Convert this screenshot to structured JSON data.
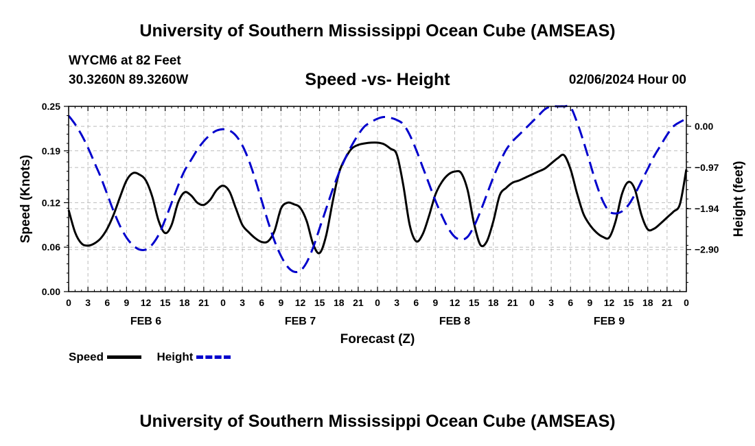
{
  "header": {
    "title": "University of Southern Mississippi Ocean Cube (AMSEAS)",
    "station": "WYCM6 at 82 Feet",
    "coordinates": "30.3260N  89.3260W",
    "subtitle": "Speed -vs- Height",
    "datetime": "02/06/2024 Hour 00"
  },
  "footer": {
    "title": "University of Southern Mississippi Ocean Cube (AMSEAS)"
  },
  "legend": {
    "speed_label": "Speed",
    "height_label": "Height"
  },
  "colors": {
    "speed": "#000000",
    "height": "#0000cc",
    "grid": "#bbbbbb"
  },
  "chart_data": {
    "type": "line",
    "title": "Speed -vs- Height",
    "xlabel": "Forecast (Z)",
    "ylabel": "Speed (Knots)",
    "ylabel_right": "Height (feet)",
    "x_range_hours": [
      0,
      96
    ],
    "xticks_hours": [
      0,
      3,
      6,
      9,
      12,
      15,
      18,
      21,
      24,
      27,
      30,
      33,
      36,
      39,
      42,
      45,
      48,
      51,
      54,
      57,
      60,
      63,
      66,
      69,
      72,
      75,
      78,
      81,
      84,
      87,
      90,
      93,
      96
    ],
    "xtick_labels": [
      "0",
      "3",
      "6",
      "9",
      "12",
      "15",
      "18",
      "21",
      "0",
      "3",
      "6",
      "9",
      "12",
      "15",
      "18",
      "21",
      "0",
      "3",
      "6",
      "9",
      "12",
      "15",
      "18",
      "21",
      "0",
      "3",
      "6",
      "9",
      "12",
      "15",
      "18",
      "21",
      "0"
    ],
    "day_labels": [
      {
        "hour": 12,
        "label": "FEB 6"
      },
      {
        "hour": 36,
        "label": "FEB 7"
      },
      {
        "hour": 60,
        "label": "FEB 8"
      },
      {
        "hour": 84,
        "label": "FEB 9"
      }
    ],
    "ylim_left": [
      0,
      0.25
    ],
    "yticks_left": [
      0.0,
      0.06,
      0.12,
      0.19,
      0.25
    ],
    "ytick_labels_left": [
      "0.00",
      "0.06",
      "0.12",
      "0.19",
      "0.25"
    ],
    "ylim_right": [
      -3.89,
      0.47
    ],
    "yticks_right": [
      0.0,
      -0.97,
      -1.94,
      -2.9
    ],
    "ytick_labels_right": [
      "0.00",
      "−0.97",
      "−1.94",
      "−2.90"
    ],
    "grid": true,
    "series": [
      {
        "name": "Speed",
        "axis": "left",
        "style": "solid",
        "points": [
          [
            0,
            0.11
          ],
          [
            1,
            0.08
          ],
          [
            2,
            0.065
          ],
          [
            3,
            0.062
          ],
          [
            4,
            0.065
          ],
          [
            5,
            0.072
          ],
          [
            6,
            0.085
          ],
          [
            7,
            0.104
          ],
          [
            8,
            0.128
          ],
          [
            9,
            0.15
          ],
          [
            10,
            0.16
          ],
          [
            11,
            0.158
          ],
          [
            12,
            0.15
          ],
          [
            13,
            0.128
          ],
          [
            14,
            0.095
          ],
          [
            15,
            0.079
          ],
          [
            16,
            0.09
          ],
          [
            17,
            0.12
          ],
          [
            18,
            0.134
          ],
          [
            19,
            0.13
          ],
          [
            20,
            0.12
          ],
          [
            21,
            0.117
          ],
          [
            22,
            0.124
          ],
          [
            23,
            0.137
          ],
          [
            24,
            0.143
          ],
          [
            25,
            0.135
          ],
          [
            26,
            0.112
          ],
          [
            27,
            0.09
          ],
          [
            28,
            0.08
          ],
          [
            29,
            0.072
          ],
          [
            30,
            0.067
          ],
          [
            31,
            0.068
          ],
          [
            32,
            0.082
          ],
          [
            33,
            0.112
          ],
          [
            34,
            0.12
          ],
          [
            35,
            0.118
          ],
          [
            36,
            0.113
          ],
          [
            37,
            0.095
          ],
          [
            38,
            0.064
          ],
          [
            39,
            0.052
          ],
          [
            40,
            0.075
          ],
          [
            41,
            0.12
          ],
          [
            42,
            0.16
          ],
          [
            43,
            0.18
          ],
          [
            44,
            0.193
          ],
          [
            45,
            0.198
          ],
          [
            46,
            0.2
          ],
          [
            47,
            0.201
          ],
          [
            48,
            0.201
          ],
          [
            49,
            0.199
          ],
          [
            50,
            0.193
          ],
          [
            51,
            0.185
          ],
          [
            52,
            0.144
          ],
          [
            53,
            0.09
          ],
          [
            54,
            0.068
          ],
          [
            55,
            0.077
          ],
          [
            56,
            0.102
          ],
          [
            57,
            0.131
          ],
          [
            58,
            0.148
          ],
          [
            59,
            0.158
          ],
          [
            60,
            0.162
          ],
          [
            61,
            0.16
          ],
          [
            62,
            0.137
          ],
          [
            63,
            0.092
          ],
          [
            64,
            0.063
          ],
          [
            65,
            0.068
          ],
          [
            66,
            0.095
          ],
          [
            67,
            0.13
          ],
          [
            68,
            0.14
          ],
          [
            69,
            0.147
          ],
          [
            70,
            0.15
          ],
          [
            71,
            0.154
          ],
          [
            72,
            0.158
          ],
          [
            73,
            0.162
          ],
          [
            74,
            0.166
          ],
          [
            75,
            0.173
          ],
          [
            76,
            0.18
          ],
          [
            77,
            0.184
          ],
          [
            78,
            0.165
          ],
          [
            79,
            0.133
          ],
          [
            80,
            0.105
          ],
          [
            81,
            0.09
          ],
          [
            82,
            0.08
          ],
          [
            83,
            0.074
          ],
          [
            84,
            0.073
          ],
          [
            85,
            0.095
          ],
          [
            86,
            0.132
          ],
          [
            87,
            0.148
          ],
          [
            88,
            0.138
          ],
          [
            89,
            0.104
          ],
          [
            90,
            0.084
          ],
          [
            91,
            0.085
          ],
          [
            92,
            0.092
          ],
          [
            93,
            0.1
          ],
          [
            94,
            0.108
          ],
          [
            95,
            0.118
          ],
          [
            96,
            0.165
          ]
        ]
      },
      {
        "name": "Height",
        "axis": "right",
        "style": "dashed",
        "points": [
          [
            0,
            0.25
          ],
          [
            1,
            0.05
          ],
          [
            2,
            -0.2
          ],
          [
            3,
            -0.5
          ],
          [
            4,
            -0.85
          ],
          [
            5,
            -1.2
          ],
          [
            6,
            -1.6
          ],
          [
            7,
            -2.0
          ],
          [
            8,
            -2.35
          ],
          [
            9,
            -2.62
          ],
          [
            10,
            -2.8
          ],
          [
            11,
            -2.9
          ],
          [
            12,
            -2.9
          ],
          [
            13,
            -2.78
          ],
          [
            14,
            -2.55
          ],
          [
            15,
            -2.2
          ],
          [
            16,
            -1.8
          ],
          [
            17,
            -1.4
          ],
          [
            18,
            -1.05
          ],
          [
            19,
            -0.8
          ],
          [
            20,
            -0.55
          ],
          [
            21,
            -0.35
          ],
          [
            22,
            -0.2
          ],
          [
            23,
            -0.1
          ],
          [
            24,
            -0.07
          ],
          [
            25,
            -0.1
          ],
          [
            26,
            -0.22
          ],
          [
            27,
            -0.45
          ],
          [
            28,
            -0.8
          ],
          [
            29,
            -1.25
          ],
          [
            30,
            -1.75
          ],
          [
            31,
            -2.25
          ],
          [
            32,
            -2.7
          ],
          [
            33,
            -3.05
          ],
          [
            34,
            -3.3
          ],
          [
            35,
            -3.42
          ],
          [
            36,
            -3.4
          ],
          [
            37,
            -3.2
          ],
          [
            38,
            -2.85
          ],
          [
            39,
            -2.4
          ],
          [
            40,
            -1.95
          ],
          [
            41,
            -1.5
          ],
          [
            42,
            -1.1
          ],
          [
            43,
            -0.75
          ],
          [
            44,
            -0.45
          ],
          [
            45,
            -0.2
          ],
          [
            46,
            0.0
          ],
          [
            47,
            0.1
          ],
          [
            48,
            0.18
          ],
          [
            49,
            0.22
          ],
          [
            50,
            0.2
          ],
          [
            51,
            0.15
          ],
          [
            52,
            0.05
          ],
          [
            53,
            -0.2
          ],
          [
            54,
            -0.55
          ],
          [
            55,
            -0.95
          ],
          [
            56,
            -1.35
          ],
          [
            57,
            -1.75
          ],
          [
            58,
            -2.1
          ],
          [
            59,
            -2.4
          ],
          [
            60,
            -2.6
          ],
          [
            61,
            -2.67
          ],
          [
            62,
            -2.6
          ],
          [
            63,
            -2.35
          ],
          [
            64,
            -2.0
          ],
          [
            65,
            -1.6
          ],
          [
            66,
            -1.2
          ],
          [
            67,
            -0.85
          ],
          [
            68,
            -0.55
          ],
          [
            69,
            -0.35
          ],
          [
            70,
            -0.2
          ],
          [
            71,
            -0.05
          ],
          [
            72,
            0.1
          ],
          [
            73,
            0.25
          ],
          [
            74,
            0.4
          ],
          [
            75,
            0.52
          ],
          [
            76,
            0.6
          ],
          [
            77,
            0.6
          ],
          [
            78,
            0.45
          ],
          [
            79,
            0.1
          ],
          [
            80,
            -0.35
          ],
          [
            81,
            -0.85
          ],
          [
            82,
            -1.35
          ],
          [
            83,
            -1.75
          ],
          [
            84,
            -2.0
          ],
          [
            85,
            -2.05
          ],
          [
            86,
            -2.0
          ],
          [
            87,
            -1.85
          ],
          [
            88,
            -1.6
          ],
          [
            89,
            -1.3
          ],
          [
            90,
            -1.0
          ],
          [
            91,
            -0.7
          ],
          [
            92,
            -0.45
          ],
          [
            93,
            -0.2
          ],
          [
            94,
            0.0
          ],
          [
            95,
            0.1
          ],
          [
            96,
            0.18
          ]
        ]
      }
    ]
  }
}
